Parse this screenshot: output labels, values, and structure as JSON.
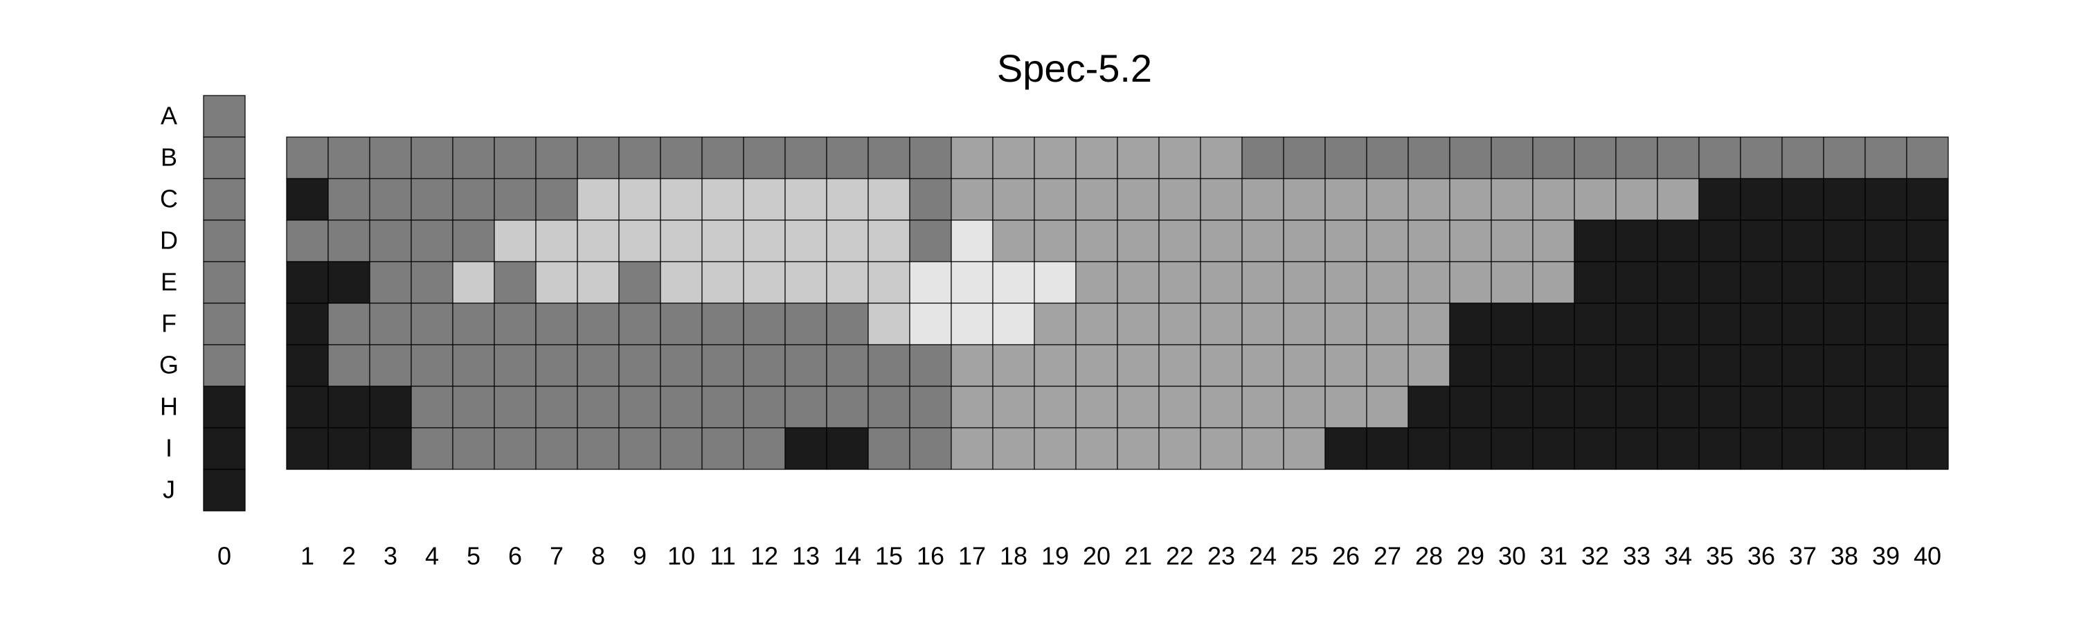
{
  "chart_data": {
    "type": "heatmap",
    "title": "Spec-5.2",
    "row_labels": [
      "A",
      "B",
      "C",
      "D",
      "E",
      "F",
      "G",
      "H",
      "I",
      "J"
    ],
    "column0": {
      "label": "0",
      "values": [
        2,
        2,
        2,
        2,
        2,
        2,
        2,
        1,
        1,
        1
      ]
    },
    "col_labels": [
      "1",
      "2",
      "3",
      "4",
      "5",
      "6",
      "7",
      "8",
      "9",
      "10",
      "11",
      "12",
      "13",
      "14",
      "15",
      "16",
      "17",
      "18",
      "19",
      "20",
      "21",
      "22",
      "23",
      "24",
      "25",
      "26",
      "27",
      "28",
      "29",
      "30",
      "31",
      "32",
      "33",
      "34",
      "35",
      "36",
      "37",
      "38",
      "39",
      "40"
    ],
    "main_row_labels": [
      "B",
      "C",
      "D",
      "E",
      "F",
      "G",
      "H",
      "I"
    ],
    "values": [
      [
        2,
        2,
        2,
        2,
        2,
        2,
        2,
        2,
        2,
        2,
        2,
        2,
        2,
        2,
        2,
        2,
        3,
        3,
        3,
        3,
        3,
        3,
        3,
        2,
        2,
        2,
        2,
        2,
        2,
        2,
        2,
        2,
        2,
        2,
        2,
        2,
        2,
        2,
        2,
        2
      ],
      [
        1,
        2,
        2,
        2,
        2,
        2,
        2,
        4,
        4,
        4,
        4,
        4,
        4,
        4,
        4,
        2,
        3,
        3,
        3,
        3,
        3,
        3,
        3,
        3,
        3,
        3,
        3,
        3,
        3,
        3,
        3,
        3,
        3,
        3,
        1,
        1,
        1,
        1,
        1,
        1
      ],
      [
        2,
        2,
        2,
        2,
        2,
        4,
        4,
        4,
        4,
        4,
        4,
        4,
        4,
        4,
        4,
        2,
        5,
        3,
        3,
        3,
        3,
        3,
        3,
        3,
        3,
        3,
        3,
        3,
        3,
        3,
        3,
        1,
        1,
        1,
        1,
        1,
        1,
        1,
        1,
        1
      ],
      [
        1,
        1,
        2,
        2,
        4,
        2,
        4,
        4,
        2,
        4,
        4,
        4,
        4,
        4,
        4,
        5,
        5,
        5,
        5,
        3,
        3,
        3,
        3,
        3,
        3,
        3,
        3,
        3,
        3,
        3,
        3,
        1,
        1,
        1,
        1,
        1,
        1,
        1,
        1,
        1
      ],
      [
        1,
        2,
        2,
        2,
        2,
        2,
        2,
        2,
        2,
        2,
        2,
        2,
        2,
        2,
        4,
        5,
        5,
        5,
        3,
        3,
        3,
        3,
        3,
        3,
        3,
        3,
        3,
        3,
        1,
        1,
        1,
        1,
        1,
        1,
        1,
        1,
        1,
        1,
        1,
        1
      ],
      [
        1,
        2,
        2,
        2,
        2,
        2,
        2,
        2,
        2,
        2,
        2,
        2,
        2,
        2,
        2,
        2,
        3,
        3,
        3,
        3,
        3,
        3,
        3,
        3,
        3,
        3,
        3,
        3,
        1,
        1,
        1,
        1,
        1,
        1,
        1,
        1,
        1,
        1,
        1,
        1
      ],
      [
        1,
        1,
        1,
        2,
        2,
        2,
        2,
        2,
        2,
        2,
        2,
        2,
        2,
        2,
        2,
        2,
        3,
        3,
        3,
        3,
        3,
        3,
        3,
        3,
        3,
        3,
        3,
        1,
        1,
        1,
        1,
        1,
        1,
        1,
        1,
        1,
        1,
        1,
        1,
        1
      ],
      [
        1,
        1,
        1,
        2,
        2,
        2,
        2,
        2,
        2,
        2,
        2,
        2,
        1,
        1,
        2,
        2,
        3,
        3,
        3,
        3,
        3,
        3,
        3,
        3,
        3,
        1,
        1,
        1,
        1,
        1,
        1,
        1,
        1,
        1,
        1,
        1,
        1,
        1,
        1,
        1
      ]
    ],
    "level_colors": {
      "1": "#1b1b1b",
      "2": "#7d7d7d",
      "3": "#a3a3a3",
      "4": "#cbcbcb",
      "5": "#e5e5e5"
    },
    "grid": true,
    "legend": "none"
  }
}
